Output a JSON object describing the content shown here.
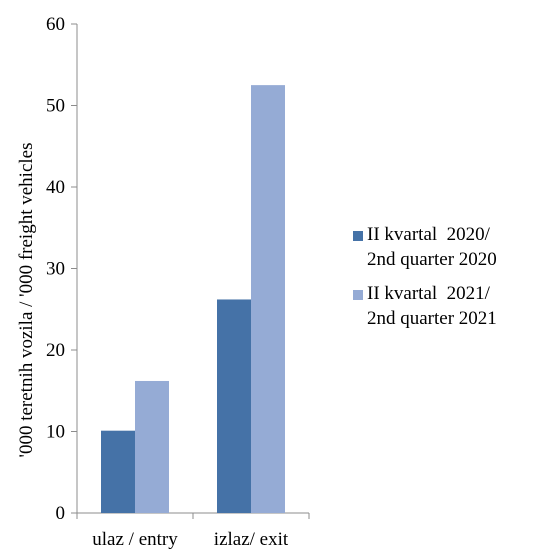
{
  "chart_data": {
    "type": "bar",
    "title": "",
    "xlabel": "",
    "ylabel": "'000 teretnih vozila / '000 freight vehicles",
    "categories": [
      "ulaz / entry",
      "izlaz/ exit"
    ],
    "ylim": [
      0,
      60
    ],
    "yticks": [
      0,
      10,
      20,
      30,
      40,
      50,
      60
    ],
    "grid": false,
    "legend_position": "right",
    "series": [
      {
        "name": "II kvartal  2020/\n2nd quarter 2020",
        "color": "#4572A7",
        "values": [
          10.1,
          26.2
        ]
      },
      {
        "name": "II kvartal  2021/\n2nd quarter 2021",
        "color": "#95ABD5",
        "values": [
          16.2,
          52.5
        ]
      }
    ]
  }
}
